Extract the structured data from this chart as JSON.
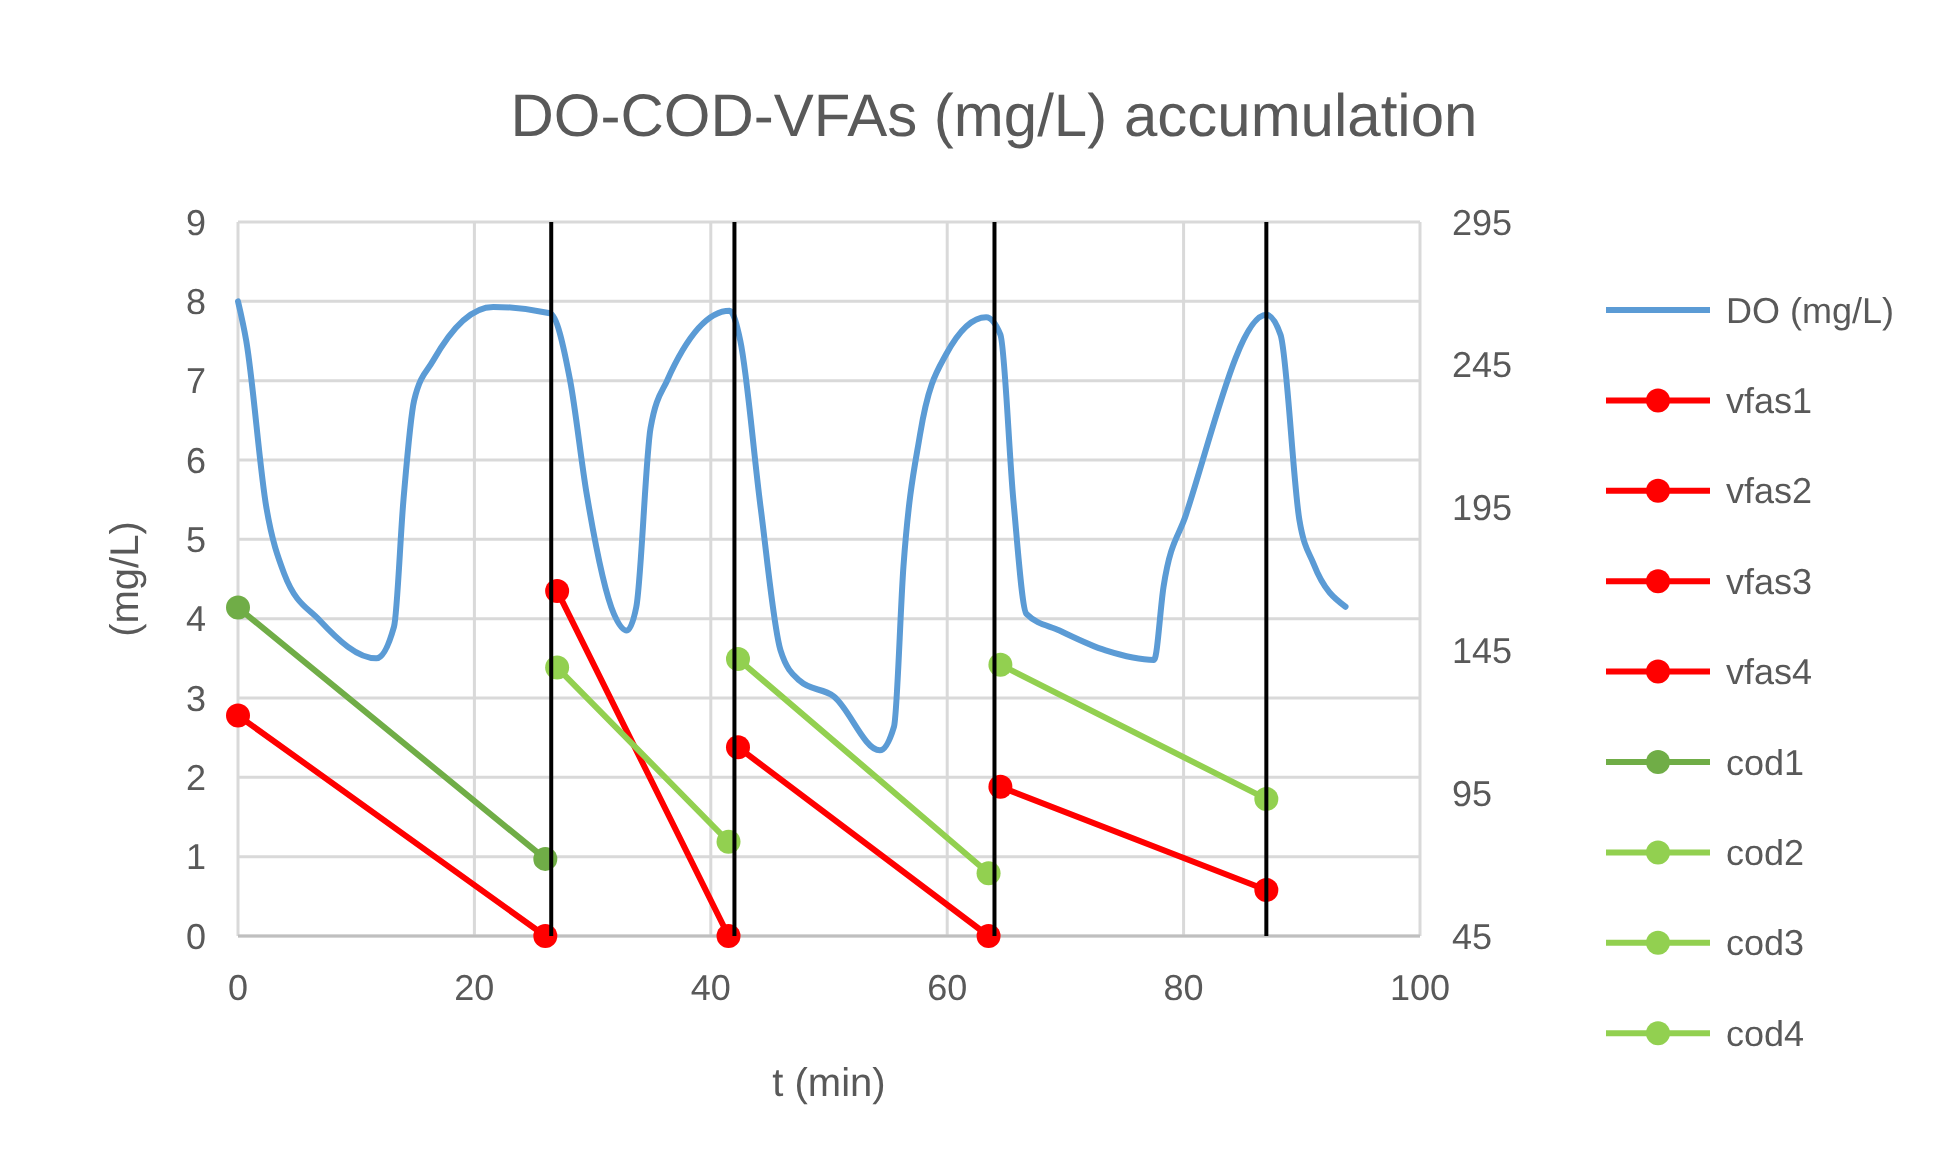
{
  "chart_data": {
    "type": "line",
    "title": "DO-COD-VFAs (mg/L) accumulation",
    "xlabel": "t (min)",
    "ylabel": "(mg/L)",
    "xlim": [
      0,
      100
    ],
    "xticks": [
      0,
      20,
      40,
      60,
      80,
      100
    ],
    "ylim": [
      0,
      9
    ],
    "yticks": [
      0,
      1,
      2,
      3,
      4,
      5,
      6,
      7,
      8,
      9
    ],
    "y2lim": [
      45,
      295
    ],
    "y2ticks": [
      45,
      95,
      145,
      195,
      245,
      295
    ],
    "grid": true,
    "legend": "right",
    "series": [
      {
        "name": "DO (mg/L)",
        "color": "#5b9bd5",
        "marker": "none",
        "x": [
          0,
          0.7,
          2.4,
          3.9,
          6.9,
          11.7,
          13.2,
          14,
          14.9,
          16.5,
          21.6,
          26.4,
          28.1,
          29.5,
          31.8,
          32.9,
          33.7,
          34.9,
          36.3,
          41.6,
          42.5,
          44.2,
          45.9,
          47.5,
          50.4,
          54.3,
          55.5,
          56.3,
          57.7,
          59.9,
          63.3,
          64.5,
          65.6,
          66.7,
          69.5,
          73.4,
          77.5,
          78.3,
          80.2,
          87,
          88.2,
          89.8,
          91,
          93.7
        ],
        "values": [
          8,
          7.5,
          5.4,
          4.57,
          3.98,
          3.5,
          3.9,
          5.5,
          6.75,
          7.25,
          7.93,
          7.85,
          7,
          5.57,
          4.06,
          3.85,
          4.15,
          6.4,
          7,
          7.88,
          7.5,
          5.42,
          3.6,
          3.22,
          3.02,
          2.34,
          2.64,
          4.66,
          6.32,
          7.33,
          7.8,
          7.58,
          5.49,
          4.06,
          3.85,
          3.6,
          3.48,
          4.4,
          5.31,
          7.83,
          7.58,
          5.24,
          4.69,
          4.15
        ]
      },
      {
        "name": "vfas1",
        "color": "#ff0000",
        "marker": "circle",
        "x": [
          0,
          26
        ],
        "values": [
          2.78,
          0
        ]
      },
      {
        "name": "vfas2",
        "color": "#ff0000",
        "marker": "circle",
        "x": [
          27,
          41.5
        ],
        "values": [
          4.35,
          0
        ]
      },
      {
        "name": "vfas3",
        "color": "#ff0000",
        "marker": "circle",
        "x": [
          42.3,
          63.5
        ],
        "values": [
          2.38,
          0
        ]
      },
      {
        "name": "vfas4",
        "color": "#ff0000",
        "marker": "circle",
        "x": [
          64.5,
          87
        ],
        "values": [
          1.88,
          0.58
        ]
      },
      {
        "name": "cod1",
        "color": "#70ad47",
        "marker": "circle",
        "axis": "y2",
        "x": [
          0,
          26
        ],
        "values": [
          160,
          72
        ]
      },
      {
        "name": "cod2",
        "color": "#92d050",
        "marker": "circle",
        "axis": "y2",
        "x": [
          27,
          41.5
        ],
        "values": [
          139,
          78
        ]
      },
      {
        "name": "cod3",
        "color": "#92d050",
        "marker": "circle",
        "axis": "y2",
        "x": [
          42.3,
          63.5
        ],
        "values": [
          142,
          67
        ]
      },
      {
        "name": "cod4",
        "color": "#92d050",
        "marker": "circle",
        "axis": "y2",
        "x": [
          64.5,
          87
        ],
        "values": [
          140,
          93
        ]
      }
    ],
    "ref_lines": [
      {
        "axis": "x",
        "value": 26.5,
        "color": "#000000"
      },
      {
        "axis": "x",
        "value": 42,
        "color": "#000000"
      },
      {
        "axis": "x",
        "value": 64,
        "color": "#000000"
      },
      {
        "axis": "x",
        "value": 87,
        "color": "#000000"
      }
    ]
  }
}
